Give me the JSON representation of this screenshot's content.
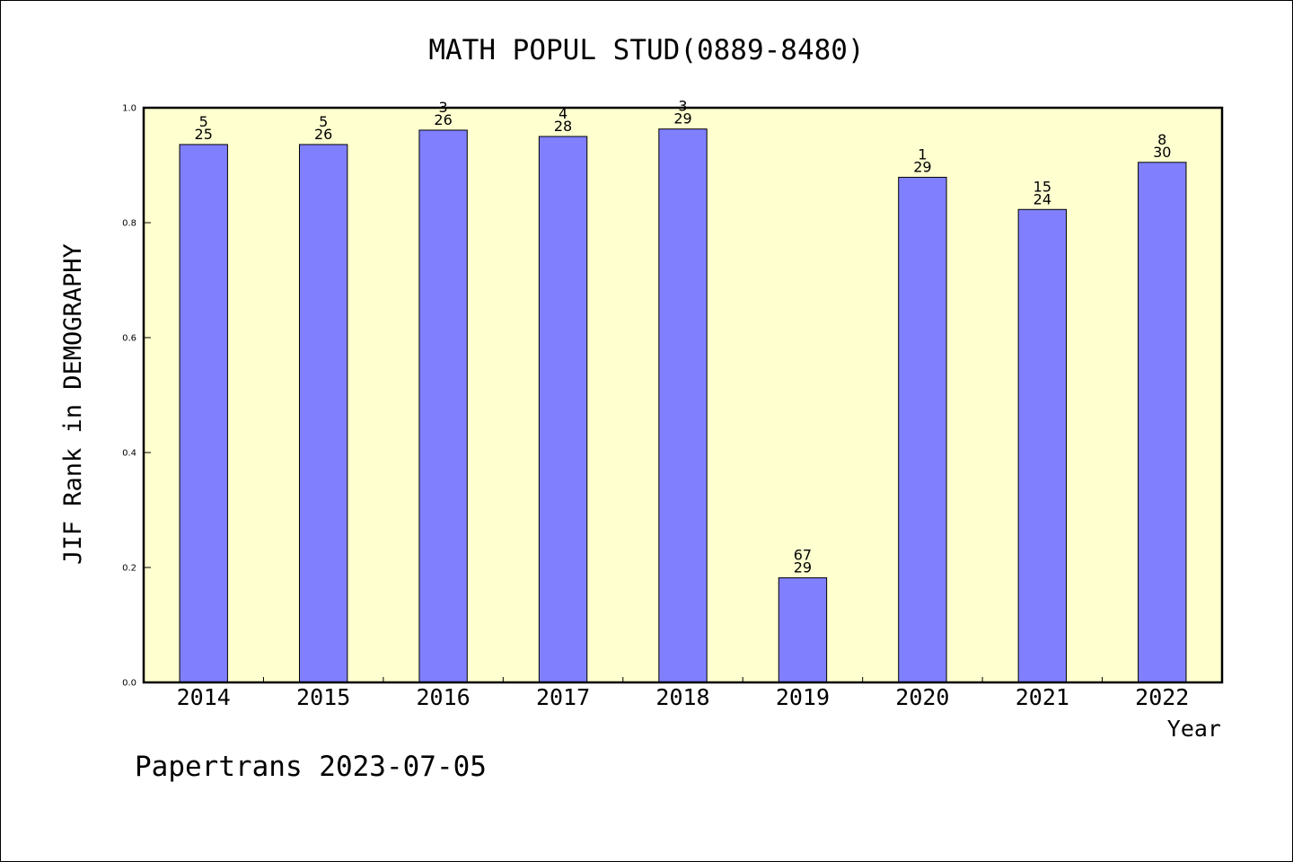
{
  "chart_data": {
    "type": "bar",
    "title": "MATH POPUL STUD(0889-8480)",
    "xlabel": "Year",
    "ylabel": "JIF Rank in DEMOGRAPHY",
    "ylim": [
      0,
      1.0
    ],
    "yticks": [
      "0.0",
      "0.2",
      "0.4",
      "0.6",
      "0.8",
      "1.0"
    ],
    "categories": [
      "2014",
      "2015",
      "2016",
      "2017",
      "2018",
      "2019",
      "2020",
      "2021",
      "2022"
    ],
    "values": [
      0.936,
      0.936,
      0.961,
      0.95,
      0.963,
      0.182,
      0.879,
      0.823,
      0.905
    ],
    "labels": [
      {
        "top": "5",
        "bottom": "25"
      },
      {
        "top": "5",
        "bottom": "26"
      },
      {
        "top": "3",
        "bottom": "26"
      },
      {
        "top": "4",
        "bottom": "28"
      },
      {
        "top": "3",
        "bottom": "29"
      },
      {
        "top": "67",
        "bottom": "29"
      },
      {
        "top": "1",
        "bottom": "29"
      },
      {
        "top": "15",
        "bottom": "24"
      },
      {
        "top": "8",
        "bottom": "30"
      }
    ],
    "colors": {
      "plot_background": "#ffffd0",
      "bar": "#8080ff",
      "bar_edge": "#000000"
    },
    "grid": false
  },
  "footer": "Papertrans 2023-07-05"
}
